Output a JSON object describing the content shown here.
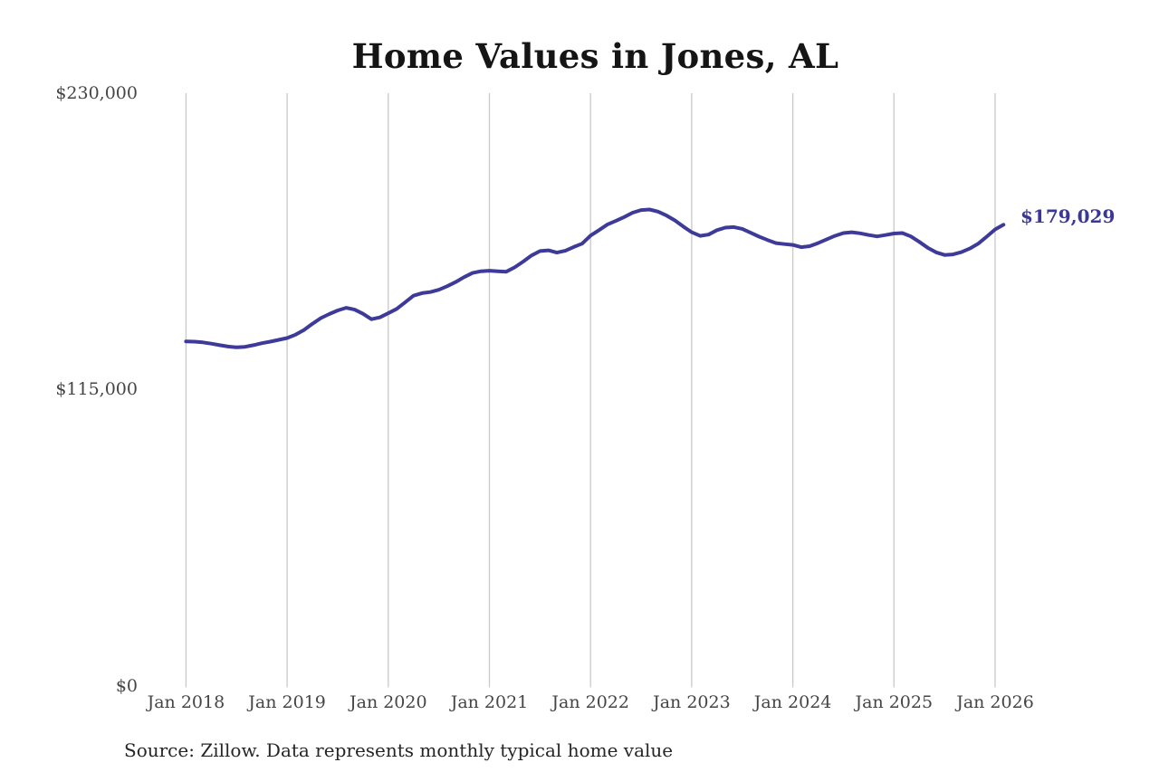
{
  "title": "Home Values in Jones, AL",
  "end_label": "$179,029",
  "source_note": "Source: Zillow. Data represents monthly typical home value",
  "colors": {
    "line": "#3e3a99",
    "grid": "#c9c9c9",
    "tick_text": "#454545",
    "end_label_text": "#3a3798",
    "title_text": "#151515"
  },
  "chart_data": {
    "type": "line",
    "title": "Home Values in Jones, AL",
    "xlabel": "",
    "ylabel": "",
    "grid": "vertical-only",
    "legend": "none",
    "ylim": [
      0,
      230000
    ],
    "y_ticks": [
      {
        "label": "$0",
        "value": 0
      },
      {
        "label": "$115,000",
        "value": 115000
      },
      {
        "label": "$230,000",
        "value": 230000
      }
    ],
    "x_tick_labels": [
      "Jan 2018",
      "Jan 2019",
      "Jan 2020",
      "Jan 2021",
      "Jan 2022",
      "Jan 2023",
      "Jan 2024",
      "Jan 2025",
      "Jan 2026"
    ],
    "months_per_tick": 12,
    "series": [
      {
        "name": "Monthly typical home value",
        "start_month": "2018-01",
        "end_month": "2026-02",
        "end_value_label": "$179,029",
        "values": [
          133800,
          133700,
          133400,
          132900,
          132300,
          131800,
          131500,
          131700,
          132300,
          133100,
          133700,
          134400,
          135100,
          136400,
          138200,
          140600,
          142800,
          144400,
          145800,
          146800,
          146100,
          144500,
          142400,
          143100,
          144700,
          146400,
          148900,
          151500,
          152500,
          152900,
          153800,
          155200,
          156800,
          158700,
          160300,
          161000,
          161200,
          161000,
          160800,
          162500,
          164700,
          167100,
          168800,
          169100,
          168200,
          168900,
          170400,
          171700,
          174800,
          176900,
          179100,
          180500,
          182000,
          183700,
          184700,
          184900,
          184100,
          182600,
          180700,
          178300,
          176100,
          174700,
          175200,
          176900,
          177900,
          178100,
          177400,
          175900,
          174400,
          173100,
          171900,
          171500,
          171200,
          170300,
          170700,
          171900,
          173300,
          174700,
          175800,
          176100,
          175700,
          175000,
          174500,
          175000,
          175600,
          175800,
          174500,
          172400,
          170100,
          168300,
          167300,
          167500,
          168400,
          169800,
          171700,
          174400,
          177200,
          179029
        ]
      }
    ]
  }
}
